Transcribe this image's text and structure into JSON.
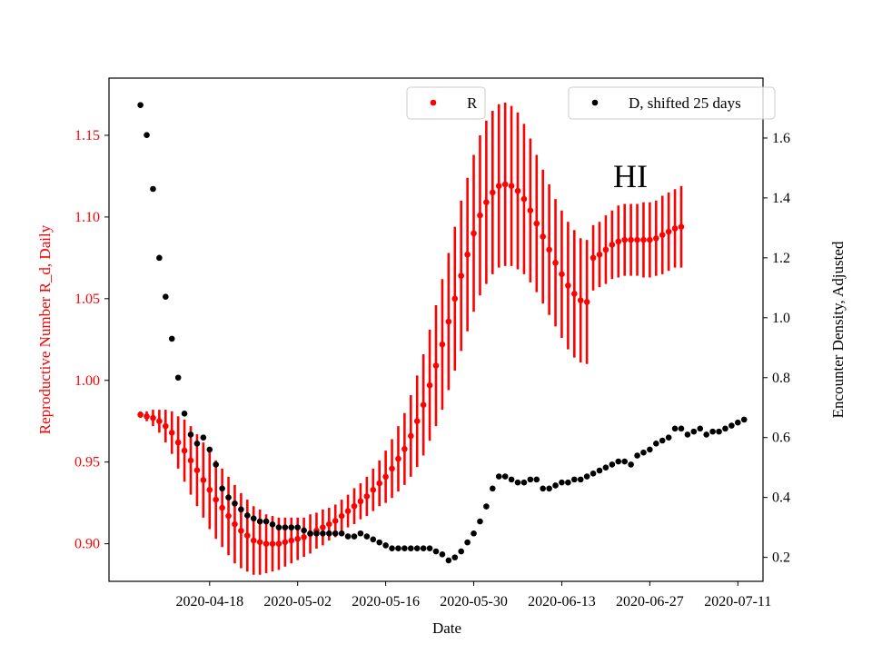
{
  "chart_data": {
    "type": "scatter",
    "annotation": "HI",
    "xlabel": "Date",
    "ylabel_left": "Reproductive Number R_d, Daily",
    "ylabel_right": "Encounter Density, Adjusted",
    "x_ticks": [
      "2020-04-18",
      "2020-05-02",
      "2020-05-16",
      "2020-05-30",
      "2020-06-13",
      "2020-06-27",
      "2020-07-11"
    ],
    "x_range": [
      "2020-04-02",
      "2020-07-15"
    ],
    "y_left_ticks": [
      0.9,
      0.95,
      1.0,
      1.05,
      1.1,
      1.15
    ],
    "y_left_range": [
      0.877,
      1.185
    ],
    "y_right_ticks": [
      0.2,
      0.4,
      0.6,
      0.8,
      1.0,
      1.2,
      1.4,
      1.6
    ],
    "y_right_range": [
      0.12,
      1.8
    ],
    "legend": [
      {
        "label": "R",
        "color": "#ff0000",
        "placement": "upper center"
      },
      {
        "label": "D, shifted 25 days",
        "color": "#000000",
        "placement": "upper right"
      }
    ],
    "series": [
      {
        "name": "R",
        "axis": "left",
        "color": "#ff0000",
        "x_start": "2020-04-07",
        "values": [
          0.979,
          0.978,
          0.977,
          0.975,
          0.972,
          0.968,
          0.962,
          0.957,
          0.951,
          0.945,
          0.939,
          0.933,
          0.927,
          0.922,
          0.917,
          0.912,
          0.908,
          0.905,
          0.902,
          0.901,
          0.9,
          0.9,
          0.9,
          0.901,
          0.902,
          0.903,
          0.904,
          0.906,
          0.908,
          0.91,
          0.912,
          0.914,
          0.917,
          0.92,
          0.923,
          0.926,
          0.929,
          0.933,
          0.937,
          0.941,
          0.946,
          0.952,
          0.958,
          0.966,
          0.975,
          0.985,
          0.997,
          1.009,
          1.022,
          1.036,
          1.05,
          1.064,
          1.077,
          1.09,
          1.101,
          1.109,
          1.115,
          1.119,
          1.12,
          1.119,
          1.116,
          1.111,
          1.104,
          1.096,
          1.088,
          1.08,
          1.072,
          1.065,
          1.058,
          1.053,
          1.049,
          1.048,
          1.075,
          1.077,
          1.08,
          1.083,
          1.085,
          1.086,
          1.086,
          1.086,
          1.086,
          1.086,
          1.087,
          1.089,
          1.091,
          1.093,
          1.094
        ],
        "errors": [
          0.002,
          0.003,
          0.005,
          0.007,
          0.01,
          0.013,
          0.016,
          0.019,
          0.021,
          0.022,
          0.023,
          0.024,
          0.024,
          0.024,
          0.024,
          0.024,
          0.023,
          0.022,
          0.021,
          0.02,
          0.018,
          0.017,
          0.016,
          0.015,
          0.014,
          0.013,
          0.012,
          0.012,
          0.011,
          0.011,
          0.01,
          0.01,
          0.01,
          0.01,
          0.011,
          0.011,
          0.012,
          0.013,
          0.014,
          0.016,
          0.018,
          0.02,
          0.022,
          0.025,
          0.028,
          0.031,
          0.034,
          0.037,
          0.04,
          0.042,
          0.044,
          0.046,
          0.047,
          0.048,
          0.049,
          0.05,
          0.05,
          0.05,
          0.05,
          0.049,
          0.048,
          0.046,
          0.044,
          0.042,
          0.041,
          0.04,
          0.039,
          0.039,
          0.039,
          0.039,
          0.038,
          0.038,
          0.02,
          0.02,
          0.021,
          0.021,
          0.022,
          0.022,
          0.022,
          0.022,
          0.023,
          0.023,
          0.023,
          0.024,
          0.024,
          0.024,
          0.025
        ]
      },
      {
        "name": "D, shifted 25 days",
        "axis": "right",
        "color": "#000000",
        "x_start": "2020-04-07",
        "values": [
          1.71,
          1.61,
          1.43,
          1.2,
          1.07,
          0.93,
          0.8,
          0.68,
          0.61,
          0.58,
          0.6,
          0.56,
          0.51,
          0.43,
          0.4,
          0.38,
          0.36,
          0.34,
          0.33,
          0.32,
          0.32,
          0.31,
          0.3,
          0.3,
          0.3,
          0.3,
          0.29,
          0.28,
          0.28,
          0.28,
          0.28,
          0.28,
          0.28,
          0.27,
          0.27,
          0.28,
          0.27,
          0.26,
          0.25,
          0.24,
          0.23,
          0.23,
          0.23,
          0.23,
          0.23,
          0.23,
          0.23,
          0.22,
          0.21,
          0.19,
          0.2,
          0.22,
          0.25,
          0.28,
          0.32,
          0.37,
          0.43,
          0.47,
          0.47,
          0.46,
          0.45,
          0.45,
          0.46,
          0.46,
          0.43,
          0.43,
          0.44,
          0.45,
          0.45,
          0.46,
          0.46,
          0.47,
          0.48,
          0.49,
          0.5,
          0.51,
          0.52,
          0.52,
          0.51,
          0.54,
          0.55,
          0.56,
          0.58,
          0.59,
          0.6,
          0.63,
          0.63,
          0.61,
          0.62,
          0.63,
          0.61,
          0.62,
          0.62,
          0.63,
          0.64,
          0.65,
          0.66
        ]
      }
    ]
  }
}
